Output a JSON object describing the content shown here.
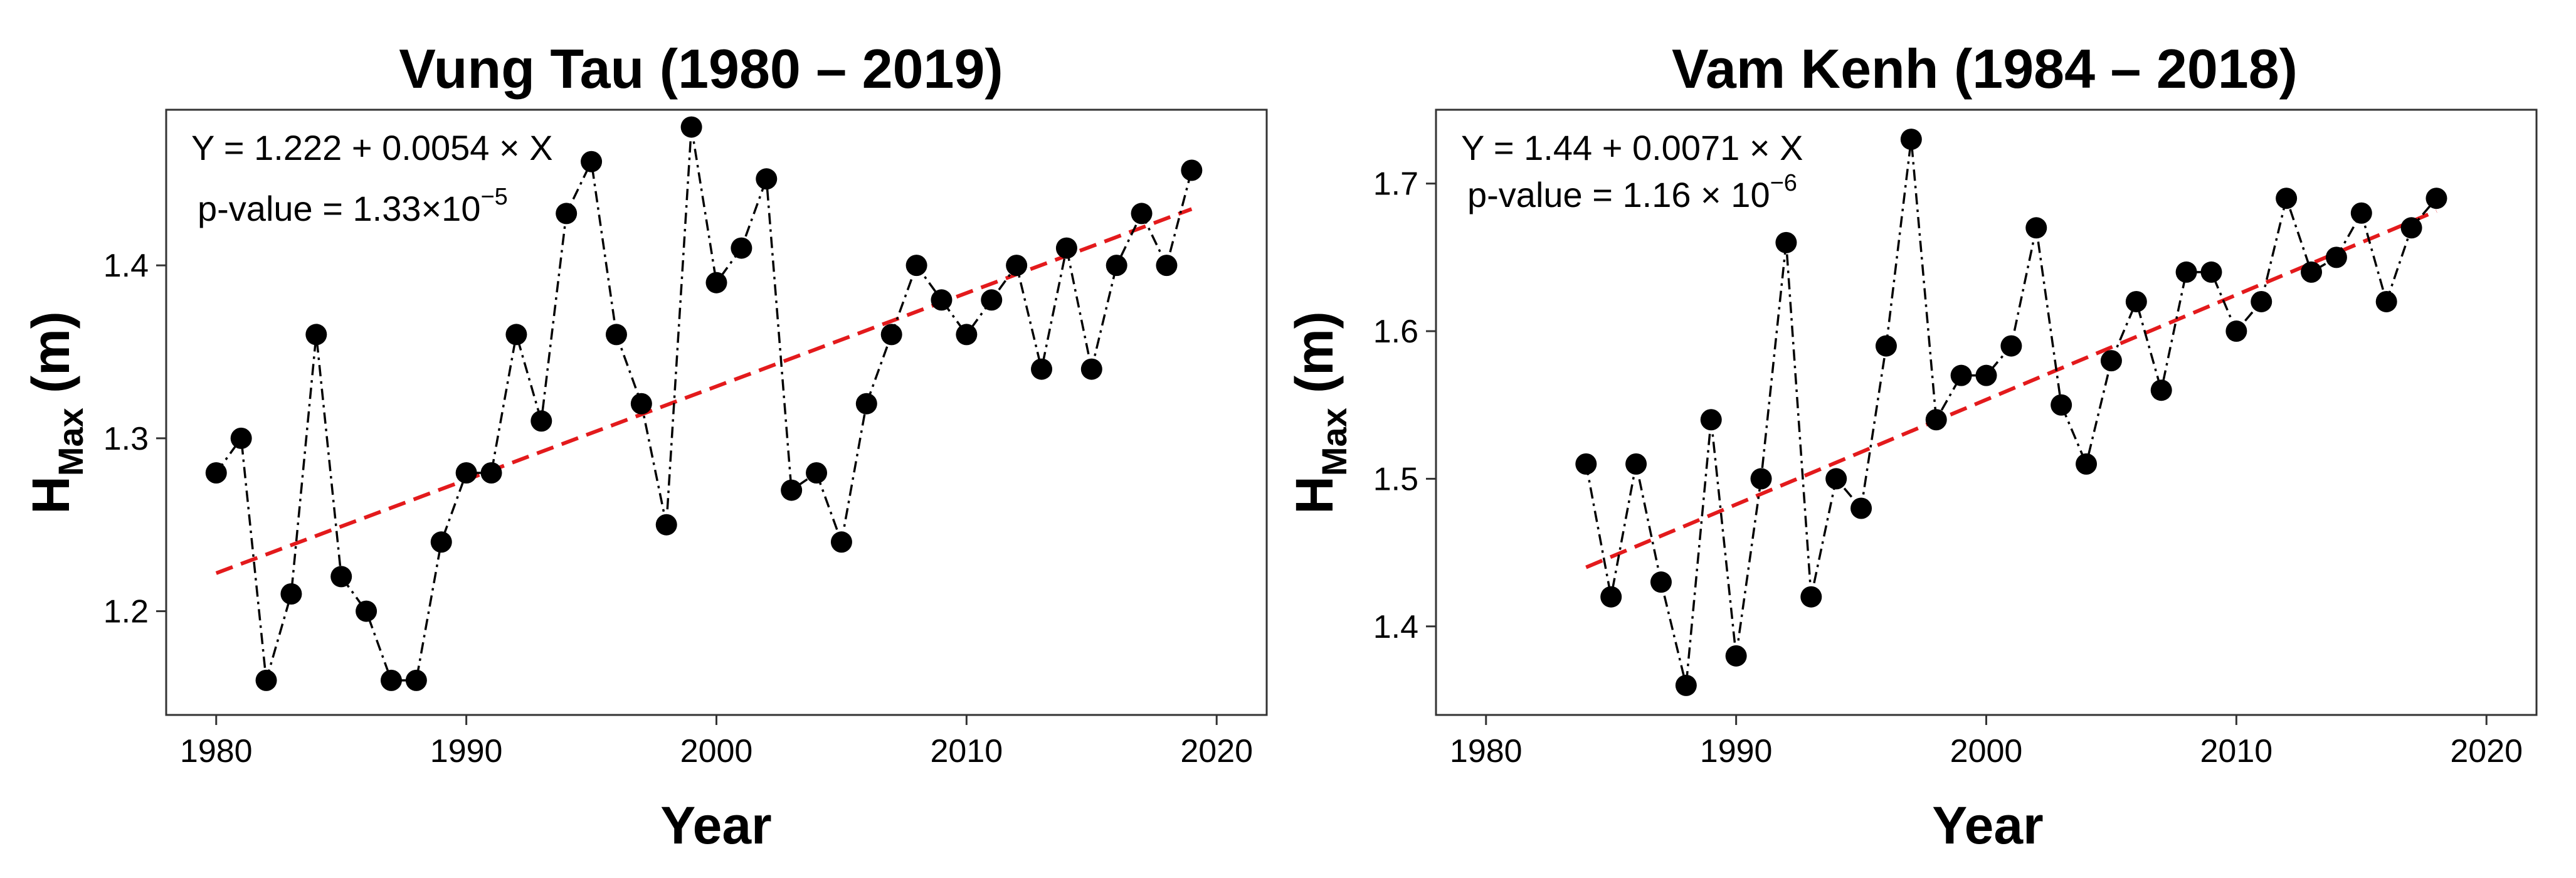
{
  "chart_data": [
    {
      "type": "scatter",
      "title": "Vung Tau (1980 – 2019)",
      "xlabel": "Year",
      "ylabel": "H",
      "ylabel_sub": "Max",
      "ylabel_unit": " (m)",
      "xlim": [
        1978,
        2022
      ],
      "ylim": [
        1.14,
        1.49
      ],
      "xticks": [
        1980,
        1990,
        2000,
        2010,
        2020
      ],
      "yticks": [
        1.2,
        1.3,
        1.4
      ],
      "yticks_labels": [
        "1.2",
        "1.3",
        "1.4"
      ],
      "grid": false,
      "line_style": "dash-dot",
      "point_color": "#000000",
      "trend_color": "#e31a1c",
      "equation": "Y = 1.222 + 0.0054 × X",
      "pvalue_prefix": "p-value = 1.33×10",
      "pvalue_exp": "−5",
      "trend": {
        "intercept": 1.222,
        "slope": 0.0054,
        "x_from": 1980,
        "x_to": 2019,
        "x_origin": 1980
      },
      "x": [
        1980,
        1981,
        1982,
        1983,
        1984,
        1985,
        1986,
        1987,
        1988,
        1989,
        1990,
        1991,
        1992,
        1993,
        1994,
        1995,
        1996,
        1997,
        1998,
        1999,
        2000,
        2001,
        2002,
        2003,
        2004,
        2005,
        2006,
        2007,
        2008,
        2009,
        2010,
        2011,
        2012,
        2013,
        2014,
        2015,
        2016,
        2017,
        2018,
        2019
      ],
      "y": [
        1.28,
        1.3,
        1.16,
        1.21,
        1.36,
        1.22,
        1.2,
        1.16,
        1.16,
        1.24,
        1.28,
        1.28,
        1.36,
        1.31,
        1.43,
        1.46,
        1.36,
        1.32,
        1.25,
        1.48,
        1.39,
        1.41,
        1.45,
        1.27,
        1.28,
        1.24,
        1.32,
        1.36,
        1.4,
        1.38,
        1.36,
        1.38,
        1.4,
        1.34,
        1.41,
        1.34,
        1.4,
        1.43,
        1.4,
        1.455
      ]
    },
    {
      "type": "scatter",
      "title": "Vam Kenh (1984 – 2018)",
      "xlabel": "Year",
      "ylabel": "H",
      "ylabel_sub": "Max",
      "ylabel_unit": " (m)",
      "xlim": [
        1978,
        2022
      ],
      "ylim": [
        1.34,
        1.75
      ],
      "xticks": [
        1980,
        1990,
        2000,
        2010,
        2020
      ],
      "yticks": [
        1.4,
        1.5,
        1.6,
        1.7
      ],
      "yticks_labels": [
        "1.4",
        "1.5",
        "1.6",
        "1.7"
      ],
      "grid": false,
      "line_style": "dash-dot",
      "point_color": "#000000",
      "trend_color": "#e31a1c",
      "equation": "Y = 1.44 + 0.0071 × X",
      "pvalue_prefix": "p-value = 1.16 × 10",
      "pvalue_exp": "−6",
      "trend": {
        "intercept": 1.44,
        "slope": 0.0071,
        "x_from": 1984,
        "x_to": 2018,
        "x_origin": 1984
      },
      "x": [
        1984,
        1985,
        1986,
        1987,
        1988,
        1989,
        1990,
        1991,
        1992,
        1993,
        1994,
        1995,
        1996,
        1997,
        1998,
        1999,
        2000,
        2001,
        2002,
        2003,
        2004,
        2005,
        2006,
        2007,
        2008,
        2009,
        2010,
        2011,
        2012,
        2013,
        2014,
        2015,
        2016,
        2017,
        2018
      ],
      "y": [
        1.51,
        1.42,
        1.51,
        1.43,
        1.36,
        1.54,
        1.38,
        1.5,
        1.66,
        1.42,
        1.5,
        1.48,
        1.59,
        1.73,
        1.54,
        1.57,
        1.57,
        1.59,
        1.67,
        1.55,
        1.51,
        1.58,
        1.62,
        1.56,
        1.64,
        1.64,
        1.6,
        1.62,
        1.69,
        1.64,
        1.65,
        1.68,
        1.62,
        1.67,
        1.69
      ]
    }
  ]
}
